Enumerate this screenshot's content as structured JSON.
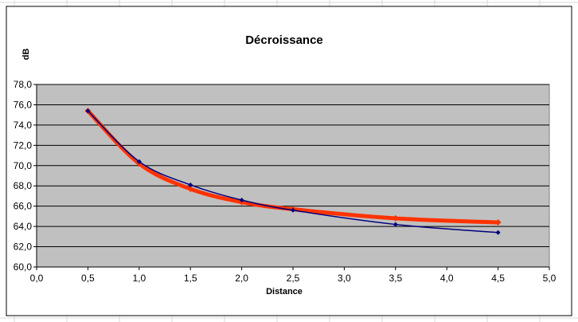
{
  "chart_data": {
    "type": "line",
    "title": "Décroissance",
    "xlabel": "Distance",
    "ylabel": "dB",
    "xlim": [
      0,
      5
    ],
    "ylim": [
      60,
      78
    ],
    "x_ticks": [
      "0,0",
      "0,5",
      "1,0",
      "1,5",
      "2,0",
      "2,5",
      "3,0",
      "3,5",
      "4,0",
      "4,5",
      "5,0"
    ],
    "y_ticks": [
      "60,0",
      "62,0",
      "64,0",
      "66,0",
      "68,0",
      "70,0",
      "72,0",
      "74,0",
      "76,0",
      "78,0"
    ],
    "grid": true,
    "legend": "none",
    "plot_background": "#c0c0c0",
    "series": [
      {
        "color": "#000080",
        "marker": "diamond",
        "x": [
          0.5,
          1.0,
          1.5,
          2.0,
          2.5,
          3.5,
          4.5
        ],
        "y": [
          75.4,
          70.4,
          68.1,
          66.6,
          65.6,
          64.2,
          63.4
        ]
      },
      {
        "color": "#ff3300",
        "marker": "diamond",
        "x": [
          0.5,
          1.0,
          1.5,
          2.0,
          2.5,
          3.5,
          4.5
        ],
        "y": [
          75.4,
          70.2,
          67.7,
          66.4,
          65.7,
          64.8,
          64.4
        ]
      }
    ]
  }
}
